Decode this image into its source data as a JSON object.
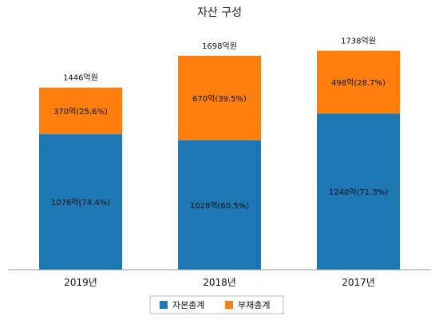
{
  "chart_data": {
    "type": "bar",
    "stacked": true,
    "title": "자산 구성",
    "categories": [
      "2019년",
      "2018년",
      "2017년"
    ],
    "totals": [
      "1446억원",
      "1698억원",
      "1738억원"
    ],
    "series": [
      {
        "name": "자본총계",
        "color": "#1f77b4",
        "values": [
          1076,
          1028,
          1240
        ],
        "labels": [
          "1076억(74.4%)",
          "1028억(60.5%)",
          "1240억(71.3%)"
        ]
      },
      {
        "name": "부채총계",
        "color": "#ff7f0e",
        "values": [
          370,
          670,
          498
        ],
        "labels": [
          "370억(25.6%)",
          "670억(39.5%)",
          "498억(28.7%)"
        ]
      }
    ],
    "xlabel": "",
    "ylabel": "",
    "ylim": [
      0,
      1900
    ],
    "grid": false,
    "legend": "bottom"
  }
}
